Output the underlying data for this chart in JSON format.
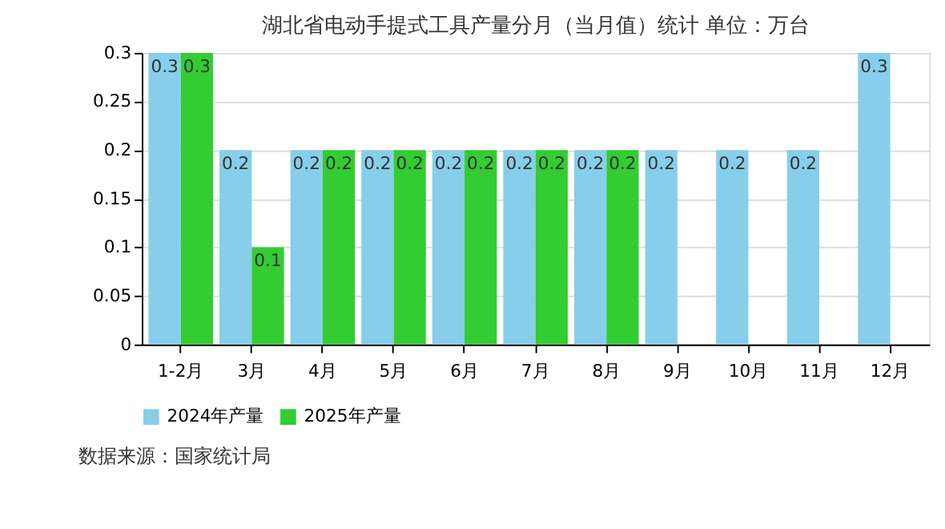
{
  "chart_data": {
    "type": "bar",
    "title": "湖北省电动手提式工具产量分月（当月值）统计 单位：万台",
    "categories": [
      "1-2月",
      "3月",
      "4月",
      "5月",
      "6月",
      "7月",
      "8月",
      "9月",
      "10月",
      "11月",
      "12月"
    ],
    "series": [
      {
        "name": "2024年产量",
        "color": "#87ceeb",
        "values": [
          0.3,
          0.2,
          0.2,
          0.2,
          0.2,
          0.2,
          0.2,
          0.2,
          0.2,
          0.2,
          0.3
        ]
      },
      {
        "name": "2025年产量",
        "color": "#33cc33",
        "values": [
          0.3,
          0.1,
          0.2,
          0.2,
          0.2,
          0.2,
          0.2,
          null,
          null,
          null,
          null
        ]
      }
    ],
    "ylim": [
      0,
      0.3
    ],
    "yticks": [
      0,
      0.05,
      0.1,
      0.15,
      0.2,
      0.25,
      0.3
    ],
    "grid": "y",
    "legend": "bottom",
    "data_labels": true,
    "annotations": [
      "数据来源：国家统计局"
    ]
  }
}
